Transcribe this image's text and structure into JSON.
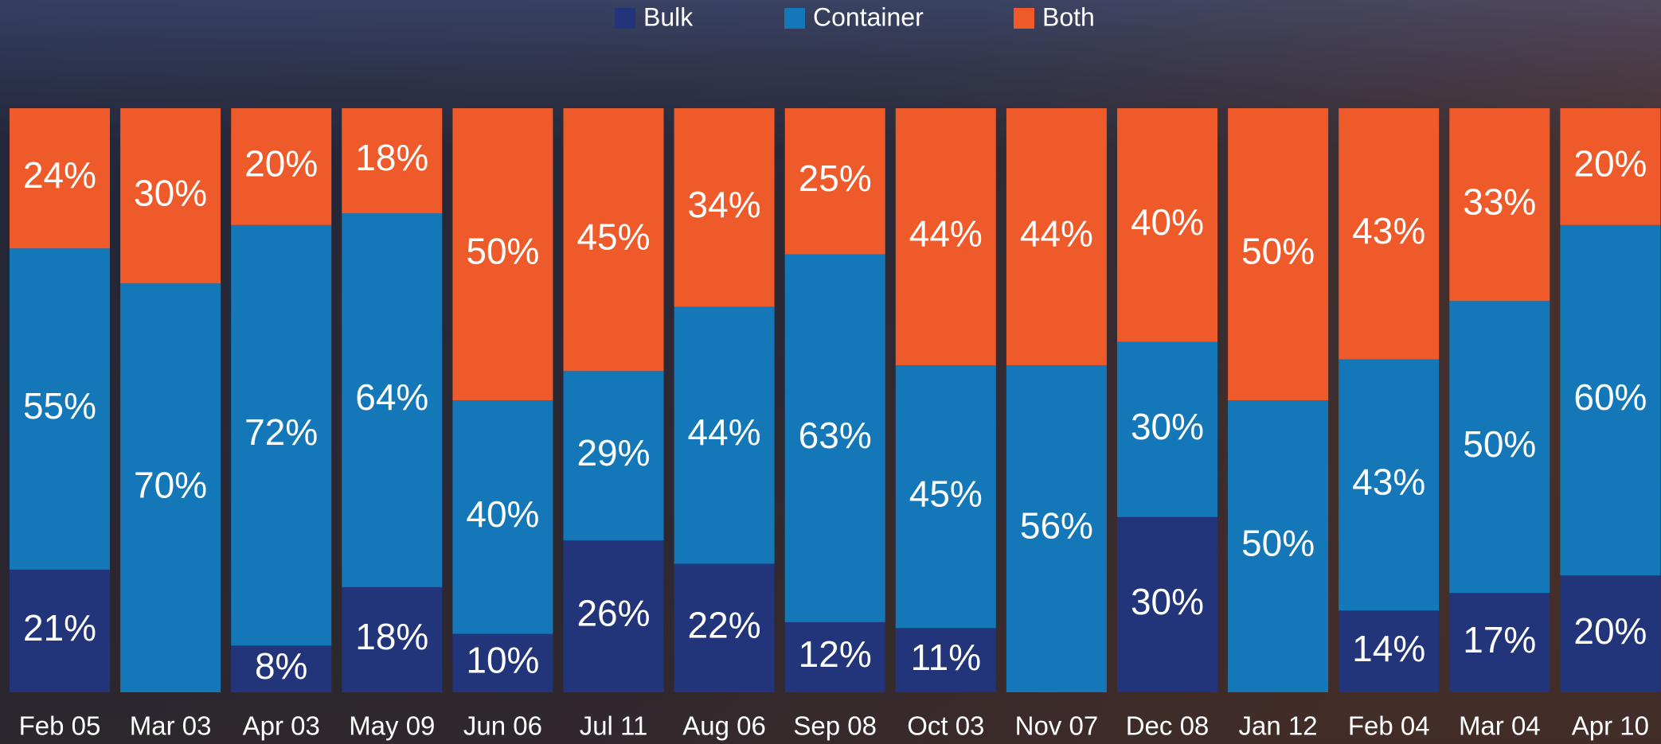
{
  "chart_data": {
    "type": "stacked_bar",
    "categories": [
      "Feb 05",
      "Mar 03",
      "Apr 03",
      "May 09",
      "Jun 06",
      "Jul 11",
      "Aug 06",
      "Sep 08",
      "Oct 03",
      "Nov 07",
      "Dec 08",
      "Jan 12",
      "Feb 04",
      "Mar 04",
      "Apr 10"
    ],
    "series": [
      {
        "name": "Bulk",
        "color": "#22347a",
        "values": [
          21,
          0,
          8,
          18,
          10,
          26,
          22,
          12,
          11,
          0,
          30,
          0,
          14,
          17,
          20
        ],
        "value_labels": [
          "21%",
          null,
          "8%",
          "18%",
          "10%",
          "26%",
          "22%",
          "12%",
          "11%",
          null,
          "30%",
          null,
          "14%",
          "17%",
          "20%"
        ]
      },
      {
        "name": "Container",
        "color": "#1478b8",
        "values": [
          55,
          70,
          72,
          64,
          40,
          29,
          44,
          63,
          45,
          56,
          30,
          50,
          43,
          50,
          60
        ],
        "value_labels": [
          "55%",
          "70%",
          "72%",
          "64%",
          "40%",
          "29%",
          "44%",
          "63%",
          "45%",
          "56%",
          "30%",
          "50%",
          "43%",
          "50%",
          "60%"
        ]
      },
      {
        "name": "Both",
        "color": "#ee5a2a",
        "values": [
          24,
          30,
          20,
          18,
          50,
          45,
          34,
          25,
          44,
          44,
          40,
          50,
          43,
          33,
          20
        ],
        "value_labels": [
          "24%",
          "30%",
          "20%",
          "18%",
          "50%",
          "45%",
          "34%",
          "25%",
          "44%",
          "44%",
          "40%",
          "50%",
          "43%",
          "33%",
          "20%"
        ]
      }
    ],
    "ylim": [
      0,
      100
    ],
    "legend": "top"
  }
}
